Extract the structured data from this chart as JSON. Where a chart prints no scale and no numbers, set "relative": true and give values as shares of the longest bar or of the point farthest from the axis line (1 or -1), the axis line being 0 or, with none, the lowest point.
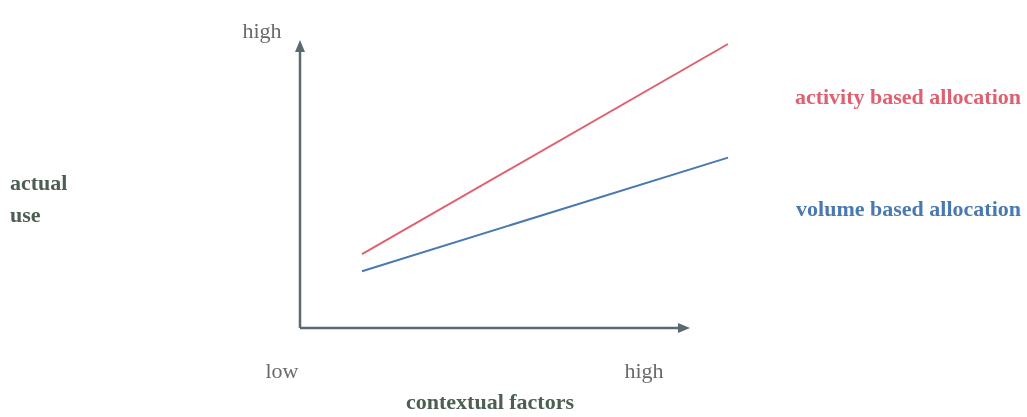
{
  "chart_data": {
    "type": "line",
    "relative": true,
    "xlabel": "contextual factors",
    "categories": [
      null,
      null
    ],
    "legend": false,
    "annotations": [
      "actual use",
      "low",
      "high",
      "high"
    ],
    "series": [
      {
        "name": "activity based allocation",
        "color": "#e06070",
        "values": [
          0.26,
          1
        ]
      },
      {
        "name": "volume based allocation",
        "color": "#4a78b0",
        "values": [
          0.2,
          0.6
        ]
      }
    ]
  }
}
